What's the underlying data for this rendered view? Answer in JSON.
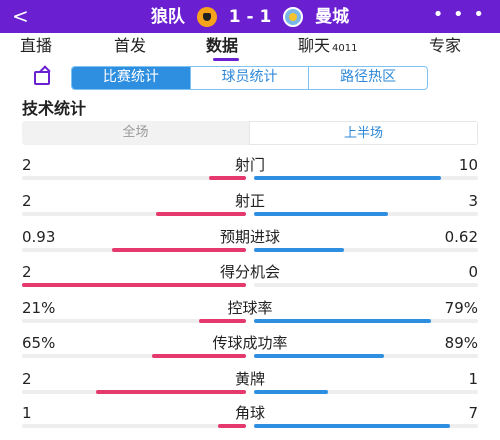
{
  "header": {
    "back_label": "<",
    "home_team": "狼队",
    "score": "1 - 1",
    "away_team": "曼城",
    "home_crest": "wolves-crest",
    "away_crest": "man-city-crest",
    "more_label": "• • •"
  },
  "nav": {
    "tabs": [
      {
        "label": "直播"
      },
      {
        "label": "首发"
      },
      {
        "label": "数据"
      },
      {
        "label": "聊天",
        "badge": "4011"
      },
      {
        "label": "专家"
      }
    ],
    "active_index": 2
  },
  "subtabs": {
    "items": [
      "比赛统计",
      "球员统计",
      "路径热区"
    ],
    "active_index": 0
  },
  "section_title": "技术统计",
  "period": {
    "items": [
      "全场",
      "上半场"
    ],
    "active_index": 1
  },
  "colors": {
    "accent": "#6a1fd1",
    "home_bar": "#e5386c",
    "away_bar": "#2e8ee0",
    "track": "#eeeeee"
  },
  "stats": [
    {
      "name": "射门",
      "home": "2",
      "away": "10",
      "home_ratio": 0.167,
      "away_ratio": 0.833
    },
    {
      "name": "射正",
      "home": "2",
      "away": "3",
      "home_ratio": 0.4,
      "away_ratio": 0.6
    },
    {
      "name": "预期进球",
      "home": "0.93",
      "away": "0.62",
      "home_ratio": 0.6,
      "away_ratio": 0.4
    },
    {
      "name": "得分机会",
      "home": "2",
      "away": "0",
      "home_ratio": 1.0,
      "away_ratio": 0.0
    },
    {
      "name": "控球率",
      "home": "21%",
      "away": "79%",
      "home_ratio": 0.21,
      "away_ratio": 0.79
    },
    {
      "name": "传球成功率",
      "home": "65%",
      "away": "89%",
      "home_ratio": 0.42,
      "away_ratio": 0.58
    },
    {
      "name": "黄牌",
      "home": "2",
      "away": "1",
      "home_ratio": 0.67,
      "away_ratio": 0.33
    },
    {
      "name": "角球",
      "home": "1",
      "away": "7",
      "home_ratio": 0.125,
      "away_ratio": 0.875
    }
  ]
}
